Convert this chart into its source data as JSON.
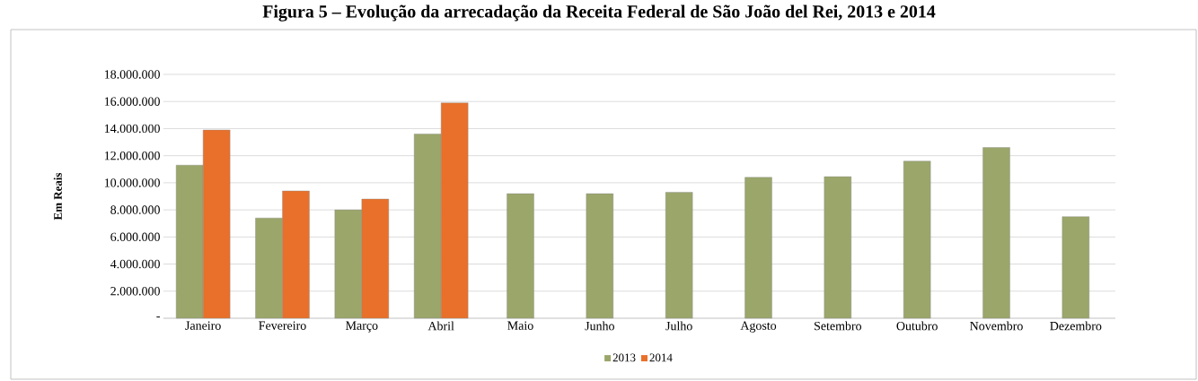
{
  "chart_data": {
    "type": "bar",
    "title": "Figura 5 – Evolução da arrecadação da Receita Federal de São João del Rei, 2013 e 2014",
    "ylabel": "Em Reais",
    "categories": [
      "Janeiro",
      "Fevereiro",
      "Março",
      "Abril",
      "Maio",
      "Junho",
      "Julho",
      "Agosto",
      "Setembro",
      "Outubro",
      "Novembro",
      "Dezembro"
    ],
    "series": [
      {
        "name": "2013",
        "color": "#9aa66a",
        "values": [
          11300000,
          7400000,
          8000000,
          13600000,
          9200000,
          9200000,
          9300000,
          10400000,
          10450000,
          11600000,
          12600000,
          7500000
        ]
      },
      {
        "name": "2014",
        "color": "#e8702a",
        "values": [
          13900000,
          9400000,
          8800000,
          15900000,
          null,
          null,
          null,
          null,
          null,
          null,
          null,
          null
        ]
      }
    ],
    "ylim": [
      0,
      18000000
    ],
    "yticks": [
      {
        "value": 0,
        "label": "-"
      },
      {
        "value": 2000000,
        "label": "2.000.000"
      },
      {
        "value": 4000000,
        "label": "4.000.000"
      },
      {
        "value": 6000000,
        "label": "6.000.000"
      },
      {
        "value": 8000000,
        "label": "8.000.000"
      },
      {
        "value": 10000000,
        "label": "10.000.000"
      },
      {
        "value": 12000000,
        "label": "12.000.000"
      },
      {
        "value": 14000000,
        "label": "14.000.000"
      },
      {
        "value": 16000000,
        "label": "16.000.000"
      },
      {
        "value": 18000000,
        "label": "18.000.000"
      }
    ],
    "grid": "y",
    "legend": "bottom"
  }
}
